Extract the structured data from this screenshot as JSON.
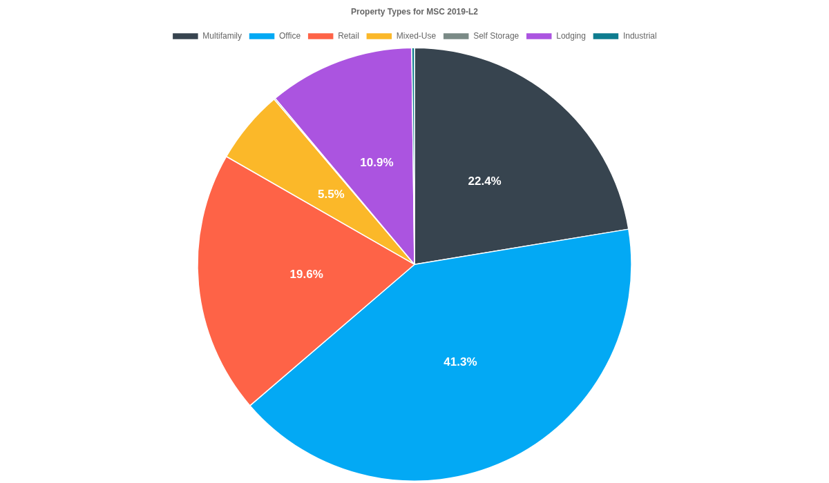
{
  "chart_data": {
    "type": "pie",
    "title": "Property Types for MSC 2019-L2",
    "categories": [
      "Multifamily",
      "Office",
      "Retail",
      "Mixed-Use",
      "Self Storage",
      "Lodging",
      "Industrial"
    ],
    "values": [
      22.4,
      41.3,
      19.6,
      5.5,
      0.1,
      10.9,
      0.2
    ],
    "value_labels": [
      "22.4%",
      "41.3%",
      "19.6%",
      "5.5%",
      null,
      "10.9%",
      null
    ],
    "colors": [
      "#37444f",
      "#03a9f4",
      "#fe6347",
      "#fbb829",
      "#7a8a86",
      "#ab54e0",
      "#0e7c8f"
    ],
    "legend": "top",
    "data_labels": true
  }
}
